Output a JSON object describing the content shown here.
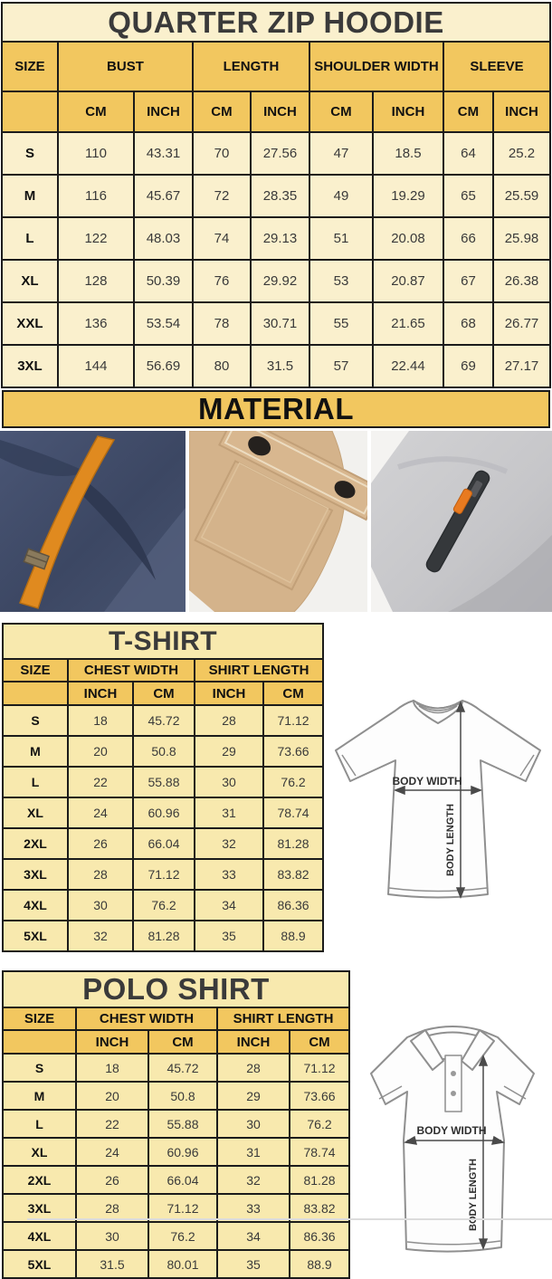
{
  "colors": {
    "header_yellow": "#F2C75F",
    "hoodie_row_cream": "#FAF0CD",
    "shirt_row_yellow": "#F8E9AE",
    "table_border": "#1B1B1B",
    "photo_navy": "#3E4A63",
    "photo_orange": "#E08A1F",
    "photo_khaki": "#D4B38B",
    "photo_gray": "#CBCBCD"
  },
  "hoodie": {
    "title": "QUARTER ZIP HOODIE",
    "headers": {
      "size": "SIZE",
      "bust": "BUST",
      "length": "LENGTH",
      "shoulder": "SHOULDER WIDTH",
      "sleeve": "SLEEVE",
      "cm": "CM",
      "inch": "INCH"
    },
    "rows": [
      [
        "S",
        "110",
        "43.31",
        "70",
        "27.56",
        "47",
        "18.5",
        "64",
        "25.2"
      ],
      [
        "M",
        "116",
        "45.67",
        "72",
        "28.35",
        "49",
        "19.29",
        "65",
        "25.59"
      ],
      [
        "L",
        "122",
        "48.03",
        "74",
        "29.13",
        "51",
        "20.08",
        "66",
        "25.98"
      ],
      [
        "XL",
        "128",
        "50.39",
        "76",
        "29.92",
        "53",
        "20.87",
        "67",
        "26.38"
      ],
      [
        "XXL",
        "136",
        "53.54",
        "78",
        "30.71",
        "55",
        "21.65",
        "68",
        "26.77"
      ],
      [
        "3XL",
        "144",
        "56.69",
        "80",
        "31.5",
        "57",
        "22.44",
        "69",
        "27.17"
      ]
    ]
  },
  "material": {
    "title": "MATERIAL",
    "photos": [
      {
        "name": "navy fleece with orange drawstring"
      },
      {
        "name": "khaki fabric snap-flap pocket"
      },
      {
        "name": "gray fleece zipper pocket with orange pull"
      }
    ]
  },
  "tshirt": {
    "title": "T-SHIRT",
    "headers": {
      "size": "SIZE",
      "chest": "CHEST WIDTH",
      "length": "SHIRT LENGTH",
      "inch": "INCH",
      "cm": "CM"
    },
    "rows": [
      [
        "S",
        "18",
        "45.72",
        "28",
        "71.12"
      ],
      [
        "M",
        "20",
        "50.8",
        "29",
        "73.66"
      ],
      [
        "L",
        "22",
        "55.88",
        "30",
        "76.2"
      ],
      [
        "XL",
        "24",
        "60.96",
        "31",
        "78.74"
      ],
      [
        "2XL",
        "26",
        "66.04",
        "32",
        "81.28"
      ],
      [
        "3XL",
        "28",
        "71.12",
        "33",
        "83.82"
      ],
      [
        "4XL",
        "30",
        "76.2",
        "34",
        "86.36"
      ],
      [
        "5XL",
        "32",
        "81.28",
        "35",
        "88.9"
      ]
    ],
    "diagram": {
      "width_label": "BODY WIDTH",
      "length_label": "BODY LENGTH"
    }
  },
  "polo": {
    "title": "POLO SHIRT",
    "headers": {
      "size": "SIZE",
      "chest": "CHEST WIDTH",
      "length": "SHIRT LENGTH",
      "inch": "INCH",
      "cm": "CM"
    },
    "rows": [
      [
        "S",
        "18",
        "45.72",
        "28",
        "71.12"
      ],
      [
        "M",
        "20",
        "50.8",
        "29",
        "73.66"
      ],
      [
        "L",
        "22",
        "55.88",
        "30",
        "76.2"
      ],
      [
        "XL",
        "24",
        "60.96",
        "31",
        "78.74"
      ],
      [
        "2XL",
        "26",
        "66.04",
        "32",
        "81.28"
      ],
      [
        "3XL",
        "28",
        "71.12",
        "33",
        "83.82"
      ],
      [
        "4XL",
        "30",
        "76.2",
        "34",
        "86.36"
      ],
      [
        "5XL",
        "31.5",
        "80.01",
        "35",
        "88.9"
      ]
    ],
    "diagram": {
      "width_label": "BODY WIDTH",
      "length_label": "BODY LENGTH"
    }
  }
}
